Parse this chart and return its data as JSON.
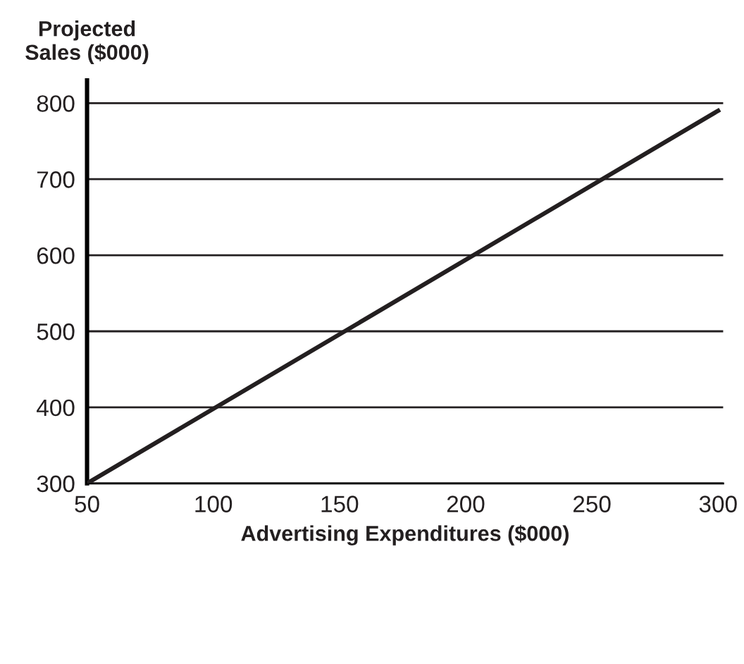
{
  "chart_data": {
    "type": "line",
    "xlabel": "Advertising Expenditures ($000)",
    "ylabel": "Projected\nSales ($000)",
    "x": [
      50,
      300
    ],
    "series": [
      {
        "color": "#231f20",
        "values": [
          300,
          790
        ]
      }
    ],
    "xlim": [
      50,
      302
    ],
    "xticks": [
      50,
      100,
      150,
      200,
      250,
      300
    ],
    "ylim": [
      300,
      830
    ],
    "yticks": [
      300,
      400,
      500,
      600,
      700,
      800
    ],
    "grid": "y",
    "line_style": "solid",
    "marker": "none"
  }
}
